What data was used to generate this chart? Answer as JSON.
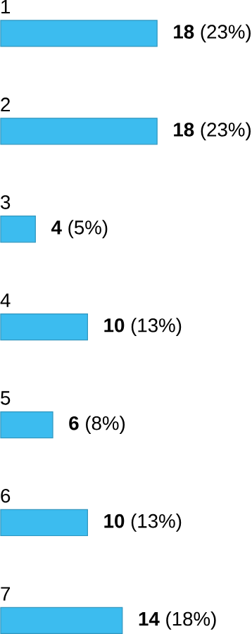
{
  "chart_data": {
    "type": "bar",
    "orientation": "horizontal",
    "categories": [
      "1",
      "2",
      "3",
      "4",
      "5",
      "6",
      "7"
    ],
    "values": [
      18,
      18,
      4,
      10,
      6,
      10,
      14
    ],
    "value_labels": [
      "**18** (23%)",
      "**18** (23%)",
      "**4** (5%)",
      "**10** (13%)",
      "**6** (8%)",
      "**10** (13%)",
      "**14** (18%)"
    ],
    "color": "#3cbcef"
  }
}
